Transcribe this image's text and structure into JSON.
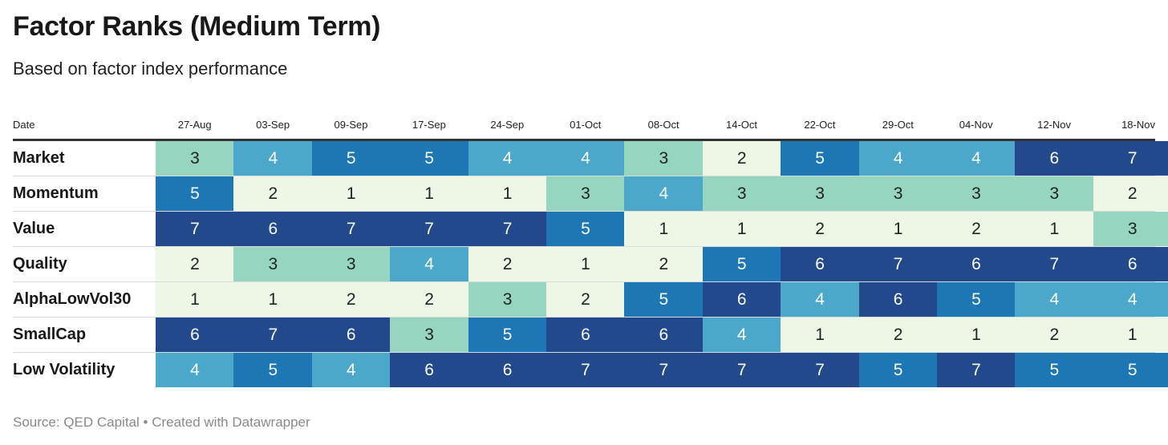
{
  "title": "Factor Ranks (Medium Term)",
  "subtitle": "Based on factor index performance",
  "source": "Source: QED Capital • Created with Datawrapper",
  "date_header": "Date",
  "chart_data": {
    "type": "heatmap",
    "title": "Factor Ranks (Medium Term)",
    "subtitle": "Based on factor index performance",
    "columns": [
      "27-Aug",
      "03-Sep",
      "09-Sep",
      "17-Sep",
      "24-Sep",
      "01-Oct",
      "08-Oct",
      "14-Oct",
      "22-Oct",
      "29-Oct",
      "04-Nov",
      "12-Nov",
      "18-Nov"
    ],
    "rows": [
      "Market",
      "Momentum",
      "Value",
      "Quality",
      "AlphaLowVol30",
      "SmallCap",
      "Low Volatility"
    ],
    "values": [
      [
        3,
        4,
        5,
        5,
        4,
        4,
        3,
        2,
        5,
        4,
        4,
        6,
        7
      ],
      [
        5,
        2,
        1,
        1,
        1,
        3,
        4,
        3,
        3,
        3,
        3,
        3,
        2
      ],
      [
        7,
        6,
        7,
        7,
        7,
        5,
        1,
        1,
        2,
        1,
        2,
        1,
        3
      ],
      [
        2,
        3,
        3,
        4,
        2,
        1,
        2,
        5,
        6,
        7,
        6,
        7,
        6
      ],
      [
        1,
        1,
        2,
        2,
        3,
        2,
        5,
        6,
        4,
        6,
        5,
        4,
        4
      ],
      [
        6,
        7,
        6,
        3,
        5,
        6,
        6,
        4,
        1,
        2,
        1,
        2,
        1
      ],
      [
        4,
        5,
        4,
        6,
        6,
        7,
        7,
        7,
        7,
        5,
        7,
        5,
        5
      ]
    ],
    "color_scale": {
      "1": "#eef7e6",
      "2": "#eef7e6",
      "3": "#96d5c0",
      "4": "#4ba8cb",
      "5": "#1c77b4",
      "6": "#22498c",
      "7": "#22498c"
    },
    "text_colors": {
      "light": "#ffffff",
      "dark": "#222222"
    }
  }
}
